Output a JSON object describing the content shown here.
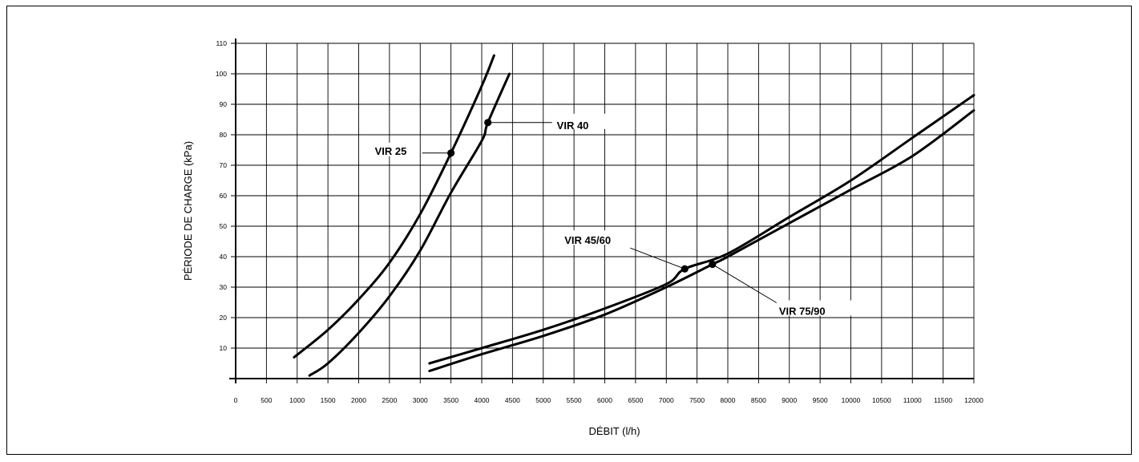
{
  "chart_data": {
    "type": "line",
    "xlabel": "DÉBIT (l/h)",
    "ylabel": "PÉRIODE DE CHARGE (kPa)",
    "xlim": [
      0,
      12000
    ],
    "ylim": [
      0,
      110
    ],
    "x_ticks": [
      0,
      500,
      1000,
      1500,
      2000,
      2500,
      3000,
      3500,
      4000,
      4500,
      5000,
      5500,
      6000,
      6500,
      7000,
      7500,
      8000,
      8500,
      9000,
      9500,
      10000,
      10500,
      11000,
      11500,
      12000
    ],
    "y_ticks": [
      10,
      20,
      30,
      40,
      50,
      60,
      70,
      80,
      90,
      100,
      110
    ],
    "grid": true,
    "series": [
      {
        "name": "VIR 25",
        "points": [
          [
            950,
            7
          ],
          [
            1500,
            16
          ],
          [
            2000,
            26
          ],
          [
            2500,
            38
          ],
          [
            3000,
            54
          ],
          [
            3500,
            74
          ],
          [
            4000,
            96
          ],
          [
            4200,
            106
          ]
        ],
        "marker": [
          3500,
          74
        ]
      },
      {
        "name": "VIR 40",
        "points": [
          [
            1200,
            1
          ],
          [
            1500,
            5
          ],
          [
            2000,
            15
          ],
          [
            2500,
            27
          ],
          [
            3000,
            42
          ],
          [
            3500,
            61
          ],
          [
            4000,
            78
          ],
          [
            4100,
            84
          ],
          [
            4450,
            100
          ]
        ],
        "marker": [
          4100,
          84
        ]
      },
      {
        "name": "VIR 45/60",
        "points": [
          [
            3150,
            5
          ],
          [
            4000,
            10
          ],
          [
            5000,
            16
          ],
          [
            6000,
            23
          ],
          [
            7000,
            31
          ],
          [
            7300,
            36
          ],
          [
            8000,
            41
          ],
          [
            9000,
            53
          ],
          [
            10000,
            65
          ],
          [
            11000,
            79
          ],
          [
            12000,
            93
          ]
        ],
        "marker": [
          7300,
          36
        ]
      },
      {
        "name": "VIR 75/90",
        "points": [
          [
            3150,
            2.5
          ],
          [
            4000,
            8
          ],
          [
            5000,
            14
          ],
          [
            6000,
            21
          ],
          [
            7000,
            30
          ],
          [
            7750,
            37.5
          ],
          [
            8000,
            40
          ],
          [
            9000,
            51
          ],
          [
            10000,
            62
          ],
          [
            11000,
            73
          ],
          [
            12000,
            88
          ]
        ],
        "marker": [
          7750,
          37.5
        ]
      }
    ]
  }
}
